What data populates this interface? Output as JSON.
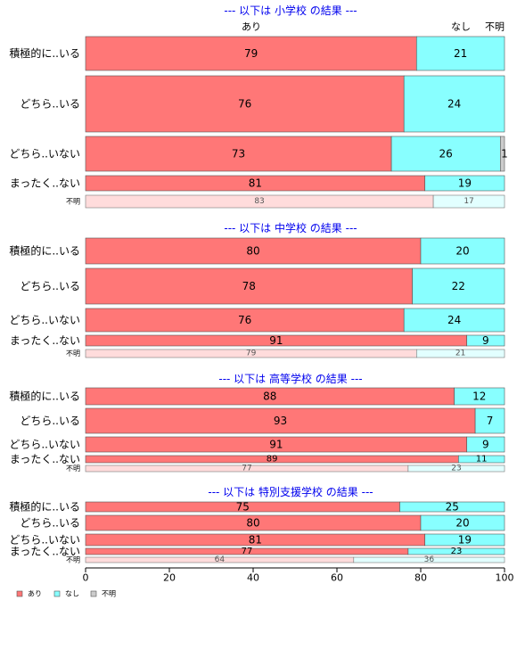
{
  "chart_data": {
    "type": "bar",
    "stacked": true,
    "orientation": "horizontal",
    "xlim": [
      0,
      100
    ],
    "x_ticks": [
      0,
      20,
      40,
      60,
      80,
      100
    ],
    "column_headers": [
      "あり",
      "なし",
      "不明"
    ],
    "legend": {
      "placement": "bottom-left",
      "entries": [
        {
          "name": "あり",
          "color": "#FF7777"
        },
        {
          "name": "なし",
          "color": "#88FFFF"
        },
        {
          "name": "不明",
          "color": "#CCCCCC"
        }
      ]
    },
    "series_colors": [
      "#FF7777",
      "#88FFFF",
      "#CCCCCC"
    ],
    "faded_colors": [
      "#FFDCDC",
      "#E2FFFF",
      "#F0F0F0"
    ],
    "panels": [
      {
        "title": "--- 以下は 小学校 の結果 ---",
        "rows": [
          {
            "label": "積極的に..いる",
            "values": [
              79,
              21,
              0
            ],
            "labels": [
              "79",
              "21",
              ""
            ]
          },
          {
            "label": "どちら..いる",
            "values": [
              76,
              24,
              0
            ],
            "labels": [
              "76",
              "24",
              ""
            ]
          },
          {
            "label": "どちら..いない",
            "values": [
              73,
              26,
              1
            ],
            "labels": [
              "73",
              "26",
              "1"
            ]
          },
          {
            "label": "まったく..ない",
            "values": [
              81,
              19,
              0
            ],
            "labels": [
              "81",
              "19",
              ""
            ]
          },
          {
            "label": "不明",
            "values": [
              83,
              17,
              0
            ],
            "labels": [
              "83",
              "17",
              ""
            ],
            "faded": true
          }
        ]
      },
      {
        "title": "--- 以下は 中学校 の結果 ---",
        "rows": [
          {
            "label": "積極的に..いる",
            "values": [
              80,
              20,
              0
            ],
            "labels": [
              "80",
              "20",
              ""
            ]
          },
          {
            "label": "どちら..いる",
            "values": [
              78,
              22,
              0
            ],
            "labels": [
              "78",
              "22",
              ""
            ]
          },
          {
            "label": "どちら..いない",
            "values": [
              76,
              24,
              0
            ],
            "labels": [
              "76",
              "24",
              ""
            ]
          },
          {
            "label": "まったく..ない",
            "values": [
              91,
              9,
              0
            ],
            "labels": [
              "91",
              "9",
              ""
            ]
          },
          {
            "label": "不明",
            "values": [
              79,
              21,
              0
            ],
            "labels": [
              "79",
              "21",
              ""
            ],
            "faded": true
          }
        ]
      },
      {
        "title": "--- 以下は 高等学校 の結果 ---",
        "rows": [
          {
            "label": "積極的に..いる",
            "values": [
              88,
              12,
              0
            ],
            "labels": [
              "88",
              "12",
              ""
            ]
          },
          {
            "label": "どちら..いる",
            "values": [
              93,
              7,
              0
            ],
            "labels": [
              "93",
              "7",
              ""
            ]
          },
          {
            "label": "どちら..いない",
            "values": [
              91,
              9,
              0
            ],
            "labels": [
              "91",
              "9",
              ""
            ]
          },
          {
            "label": "まったく..ない",
            "values": [
              89,
              11,
              0
            ],
            "labels": [
              "89",
              "11",
              ""
            ]
          },
          {
            "label": "不明",
            "values": [
              77,
              23,
              0
            ],
            "labels": [
              "77",
              "23",
              ""
            ],
            "faded": true
          }
        ]
      },
      {
        "title": "--- 以下は 特別支援学校 の結果 ---",
        "rows": [
          {
            "label": "積極的に..いる",
            "values": [
              75,
              25,
              0
            ],
            "labels": [
              "75",
              "25",
              ""
            ]
          },
          {
            "label": "どちら..いる",
            "values": [
              80,
              20,
              0
            ],
            "labels": [
              "80",
              "20",
              ""
            ]
          },
          {
            "label": "どちら..いない",
            "values": [
              81,
              19,
              0
            ],
            "labels": [
              "81",
              "19",
              ""
            ]
          },
          {
            "label": "まったく..ない",
            "values": [
              77,
              23,
              0
            ],
            "labels": [
              "77",
              "23",
              ""
            ]
          },
          {
            "label": "不明",
            "values": [
              64,
              36,
              0
            ],
            "labels": [
              "64",
              "36",
              ""
            ],
            "faded": true
          }
        ]
      }
    ]
  }
}
